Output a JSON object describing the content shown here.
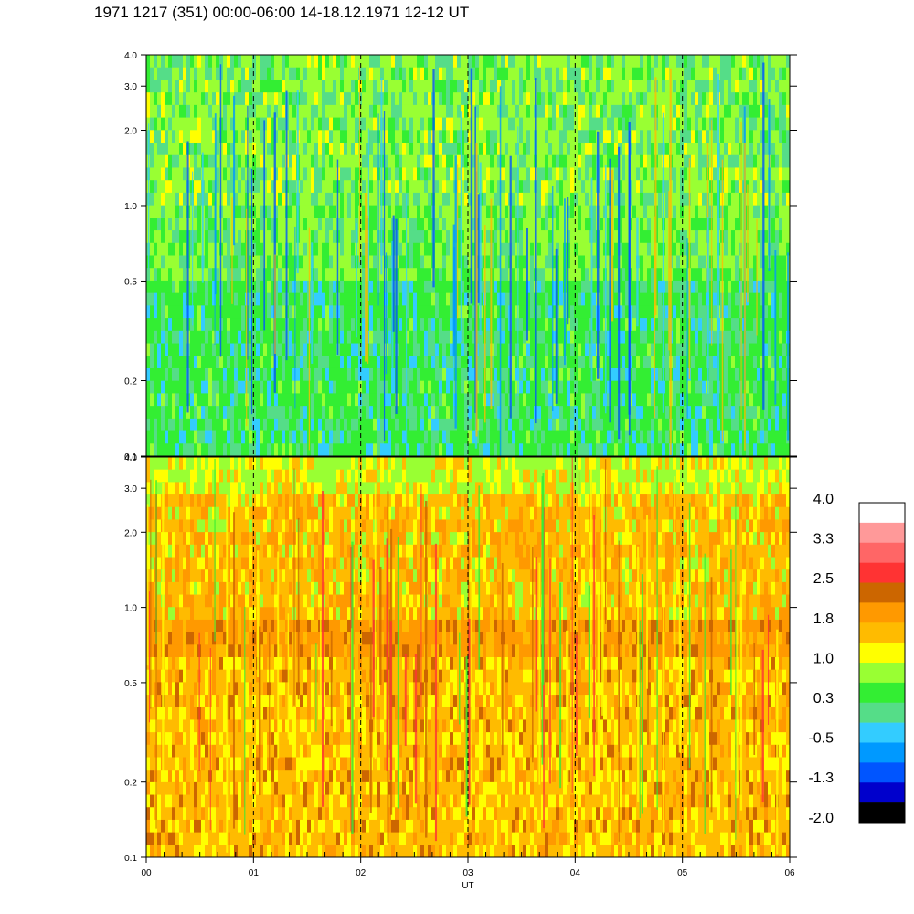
{
  "title": "1971 1217 (351) 00:00-06:00 14-18.12.1971  12-12 UT",
  "chart_data": [
    {
      "type": "heatmap",
      "panel": "top",
      "x_range": [
        0,
        6
      ],
      "y_range": [
        0.1,
        4.0
      ],
      "y_scale": "log",
      "x_ticks": [
        "00",
        "01",
        "02",
        "03",
        "04",
        "05",
        "06"
      ],
      "y_ticks": [
        {
          "value": 0.1,
          "label": "0.1"
        },
        {
          "value": 0.2,
          "label": "0.2"
        },
        {
          "value": 0.5,
          "label": "0.5"
        },
        {
          "value": 1.0,
          "label": "1.0"
        },
        {
          "value": 2.0,
          "label": "2.0"
        },
        {
          "value": 3.0,
          "label": "3.0"
        },
        {
          "value": 4.0,
          "label": "4.0"
        }
      ],
      "hour_markers": [
        1,
        2,
        3,
        4,
        5
      ],
      "dominant_levels": [
        "green",
        "light-green",
        "teal",
        "light-blue"
      ]
    },
    {
      "type": "heatmap",
      "panel": "bottom",
      "x_range": [
        0,
        6
      ],
      "y_range": [
        0.1,
        4.0
      ],
      "y_scale": "log",
      "x_ticks": [
        "00",
        "01",
        "02",
        "03",
        "04",
        "05",
        "06"
      ],
      "y_ticks": [
        {
          "value": 0.1,
          "label": "0.1"
        },
        {
          "value": 0.2,
          "label": "0.2"
        },
        {
          "value": 0.5,
          "label": "0.5"
        },
        {
          "value": 1.0,
          "label": "1.0"
        },
        {
          "value": 2.0,
          "label": "2.0"
        },
        {
          "value": 3.0,
          "label": "3.0"
        },
        {
          "value": 4.0,
          "label": "4.0"
        }
      ],
      "hour_markers": [
        1,
        2,
        3,
        4,
        5
      ],
      "dominant_levels": [
        "yellow",
        "amber",
        "orange",
        "dark-orange"
      ]
    }
  ],
  "xlabel": "UT",
  "colorbar": {
    "labels": [
      "4.0",
      "3.3",
      "2.5",
      "1.8",
      "1.0",
      "0.3",
      "-0.5",
      "-1.3",
      "-2.0"
    ],
    "colors_top_to_bottom": [
      "#ffffff",
      "#ff9999",
      "#ff6666",
      "#ff3333",
      "#cc6600",
      "#ff9900",
      "#ffbb00",
      "#ffff00",
      "#99ff33",
      "#33ee33",
      "#55dd88",
      "#33ccff",
      "#0099ff",
      "#0055ff",
      "#0000cc",
      "#000000"
    ]
  }
}
